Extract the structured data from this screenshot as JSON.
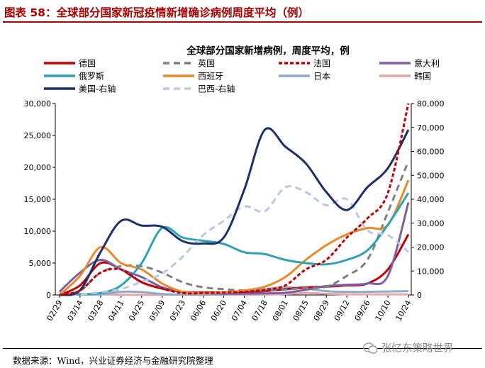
{
  "figure": {
    "title": "图表 58：全球部分国家新冠疫情新增确诊病例周度平均（例）",
    "source": "数据来源：Wind，兴业证券经济与金融研究院整理",
    "watermark": "张忆东策略世界"
  },
  "chart_data": {
    "type": "line",
    "title": "全球部分国家新增病例，周度平均，例",
    "categories": [
      "02/29",
      "03/14",
      "03/28",
      "04/11",
      "04/25",
      "05/09",
      "05/23",
      "06/06",
      "06/20",
      "07/04",
      "07/18",
      "08/01",
      "08/15",
      "08/29",
      "09/12",
      "09/26",
      "10/10",
      "10/24"
    ],
    "y_left": {
      "min": 0,
      "max": 30000,
      "ticks": [
        0,
        5000,
        10000,
        15000,
        20000,
        25000,
        30000
      ],
      "tick_labels": [
        "0",
        "5,000",
        "10,000",
        "15,000",
        "20,000",
        "25,000",
        "30,000"
      ]
    },
    "y_right": {
      "min": 0,
      "max": 80000,
      "ticks": [
        0,
        10000,
        20000,
        30000,
        40000,
        50000,
        60000,
        70000,
        80000
      ],
      "tick_labels": [
        "0",
        "10,000",
        "20,000",
        "30,000",
        "40,000",
        "50,000",
        "60,000",
        "70,000",
        "80,000"
      ]
    },
    "grid": false,
    "legend_position": "top",
    "series": [
      {
        "name": "德国",
        "color": "#c00000",
        "dash": "solid",
        "axis": "left",
        "points": [
          [
            0,
            0
          ],
          [
            1,
            1500
          ],
          [
            2,
            5000
          ],
          [
            3,
            4000
          ],
          [
            4,
            2000
          ],
          [
            5,
            1000
          ],
          [
            6,
            500
          ],
          [
            7,
            400
          ],
          [
            8,
            400
          ],
          [
            9,
            400
          ],
          [
            10,
            600
          ],
          [
            11,
            900
          ],
          [
            12,
            1200
          ],
          [
            13,
            1300
          ],
          [
            14,
            1500
          ],
          [
            15,
            1800
          ],
          [
            16,
            4000
          ],
          [
            17,
            9500
          ]
        ]
      },
      {
        "name": "英国",
        "color": "#808080",
        "dash": "dash",
        "axis": "left",
        "points": [
          [
            0,
            0
          ],
          [
            1,
            700
          ],
          [
            2,
            3500
          ],
          [
            3,
            4500
          ],
          [
            4,
            4500
          ],
          [
            5,
            3500
          ],
          [
            6,
            2000
          ],
          [
            7,
            1200
          ],
          [
            8,
            900
          ],
          [
            9,
            700
          ],
          [
            10,
            700
          ],
          [
            11,
            850
          ],
          [
            12,
            1100
          ],
          [
            13,
            1300
          ],
          [
            14,
            3000
          ],
          [
            15,
            5500
          ],
          [
            16,
            13000
          ],
          [
            17,
            21000
          ]
        ]
      },
      {
        "name": "法国",
        "color": "#c00000",
        "dash": "dense-dash",
        "axis": "left",
        "points": [
          [
            0,
            0
          ],
          [
            1,
            700
          ],
          [
            2,
            3500
          ],
          [
            3,
            4000
          ],
          [
            4,
            2000
          ],
          [
            5,
            1000
          ],
          [
            6,
            300
          ],
          [
            7,
            300
          ],
          [
            8,
            400
          ],
          [
            9,
            500
          ],
          [
            10,
            800
          ],
          [
            11,
            1500
          ],
          [
            12,
            4000
          ],
          [
            13,
            5500
          ],
          [
            14,
            9000
          ],
          [
            15,
            12000
          ],
          [
            16,
            16000
          ],
          [
            17,
            30000
          ]
        ]
      },
      {
        "name": "意大利",
        "color": "#7b5ea7",
        "dash": "solid",
        "axis": "left",
        "points": [
          [
            0,
            500
          ],
          [
            1,
            3500
          ],
          [
            2,
            5500
          ],
          [
            3,
            4000
          ],
          [
            4,
            2800
          ],
          [
            5,
            1200
          ],
          [
            6,
            500
          ],
          [
            7,
            300
          ],
          [
            8,
            200
          ],
          [
            9,
            200
          ],
          [
            10,
            250
          ],
          [
            11,
            350
          ],
          [
            12,
            800
          ],
          [
            13,
            1400
          ],
          [
            14,
            1600
          ],
          [
            15,
            1800
          ],
          [
            16,
            3000
          ],
          [
            17,
            14500
          ]
        ]
      },
      {
        "name": "俄罗斯",
        "color": "#31a2b3",
        "dash": "solid",
        "axis": "left",
        "points": [
          [
            0,
            0
          ],
          [
            1,
            100
          ],
          [
            2,
            300
          ],
          [
            3,
            1500
          ],
          [
            4,
            5000
          ],
          [
            5,
            10500
          ],
          [
            6,
            9000
          ],
          [
            7,
            8500
          ],
          [
            8,
            8000
          ],
          [
            9,
            6700
          ],
          [
            10,
            6400
          ],
          [
            11,
            5500
          ],
          [
            12,
            5000
          ],
          [
            13,
            4800
          ],
          [
            14,
            5500
          ],
          [
            15,
            7000
          ],
          [
            16,
            11000
          ],
          [
            17,
            16000
          ]
        ]
      },
      {
        "name": "西班牙",
        "color": "#e9892d",
        "dash": "solid",
        "axis": "left",
        "points": [
          [
            0,
            0
          ],
          [
            1,
            3000
          ],
          [
            2,
            7500
          ],
          [
            3,
            5000
          ],
          [
            4,
            4000
          ],
          [
            5,
            1800
          ],
          [
            6,
            500
          ],
          [
            7,
            300
          ],
          [
            8,
            400
          ],
          [
            9,
            700
          ],
          [
            10,
            1300
          ],
          [
            11,
            2800
          ],
          [
            12,
            5500
          ],
          [
            13,
            7800
          ],
          [
            14,
            9500
          ],
          [
            15,
            10500
          ],
          [
            16,
            11000
          ],
          [
            17,
            18000
          ]
        ]
      },
      {
        "name": "日本",
        "color": "#8eaacb",
        "dash": "solid",
        "axis": "left",
        "points": [
          [
            0,
            0
          ],
          [
            1,
            50
          ],
          [
            2,
            100
          ],
          [
            3,
            500
          ],
          [
            4,
            450
          ],
          [
            5,
            150
          ],
          [
            6,
            50
          ],
          [
            7,
            50
          ],
          [
            8,
            100
          ],
          [
            9,
            300
          ],
          [
            10,
            900
          ],
          [
            11,
            1200
          ],
          [
            12,
            1000
          ],
          [
            13,
            600
          ],
          [
            14,
            500
          ],
          [
            15,
            500
          ],
          [
            16,
            550
          ],
          [
            17,
            600
          ]
        ]
      },
      {
        "name": "韩国",
        "color": "#e3a8a6",
        "dash": "solid",
        "axis": "left",
        "points": [
          [
            0,
            300
          ],
          [
            1,
            200
          ],
          [
            2,
            100
          ],
          [
            3,
            50
          ],
          [
            4,
            20
          ],
          [
            5,
            20
          ],
          [
            6,
            40
          ],
          [
            7,
            40
          ],
          [
            8,
            50
          ],
          [
            9,
            50
          ],
          [
            10,
            60
          ],
          [
            11,
            150
          ],
          [
            12,
            300
          ],
          [
            13,
            200
          ],
          [
            14,
            100
          ],
          [
            15,
            100
          ],
          [
            16,
            100
          ],
          [
            17,
            100
          ]
        ]
      },
      {
        "name": "美国-右轴",
        "color": "#1a2f6b",
        "dash": "solid",
        "axis": "right",
        "points": [
          [
            0,
            0
          ],
          [
            1,
            2000
          ],
          [
            2,
            18000
          ],
          [
            3,
            31000
          ],
          [
            4,
            29000
          ],
          [
            5,
            28500
          ],
          [
            6,
            22500
          ],
          [
            7,
            21500
          ],
          [
            8,
            24000
          ],
          [
            9,
            44000
          ],
          [
            10,
            69000
          ],
          [
            11,
            62000
          ],
          [
            12,
            55000
          ],
          [
            13,
            43000
          ],
          [
            14,
            35500
          ],
          [
            15,
            45000
          ],
          [
            16,
            53000
          ],
          [
            17,
            69000
          ]
        ]
      },
      {
        "name": "巴西-右轴",
        "color": "#b8c8e6",
        "dash": "dash",
        "axis": "right",
        "points": [
          [
            0,
            0
          ],
          [
            1,
            200
          ],
          [
            2,
            1200
          ],
          [
            3,
            2500
          ],
          [
            4,
            5500
          ],
          [
            5,
            9000
          ],
          [
            6,
            16000
          ],
          [
            7,
            25000
          ],
          [
            8,
            31000
          ],
          [
            9,
            37000
          ],
          [
            10,
            35000
          ],
          [
            11,
            45000
          ],
          [
            12,
            43000
          ],
          [
            13,
            37500
          ],
          [
            14,
            40000
          ],
          [
            15,
            27000
          ],
          [
            16,
            25000
          ],
          [
            17,
            18000
          ]
        ]
      }
    ]
  }
}
